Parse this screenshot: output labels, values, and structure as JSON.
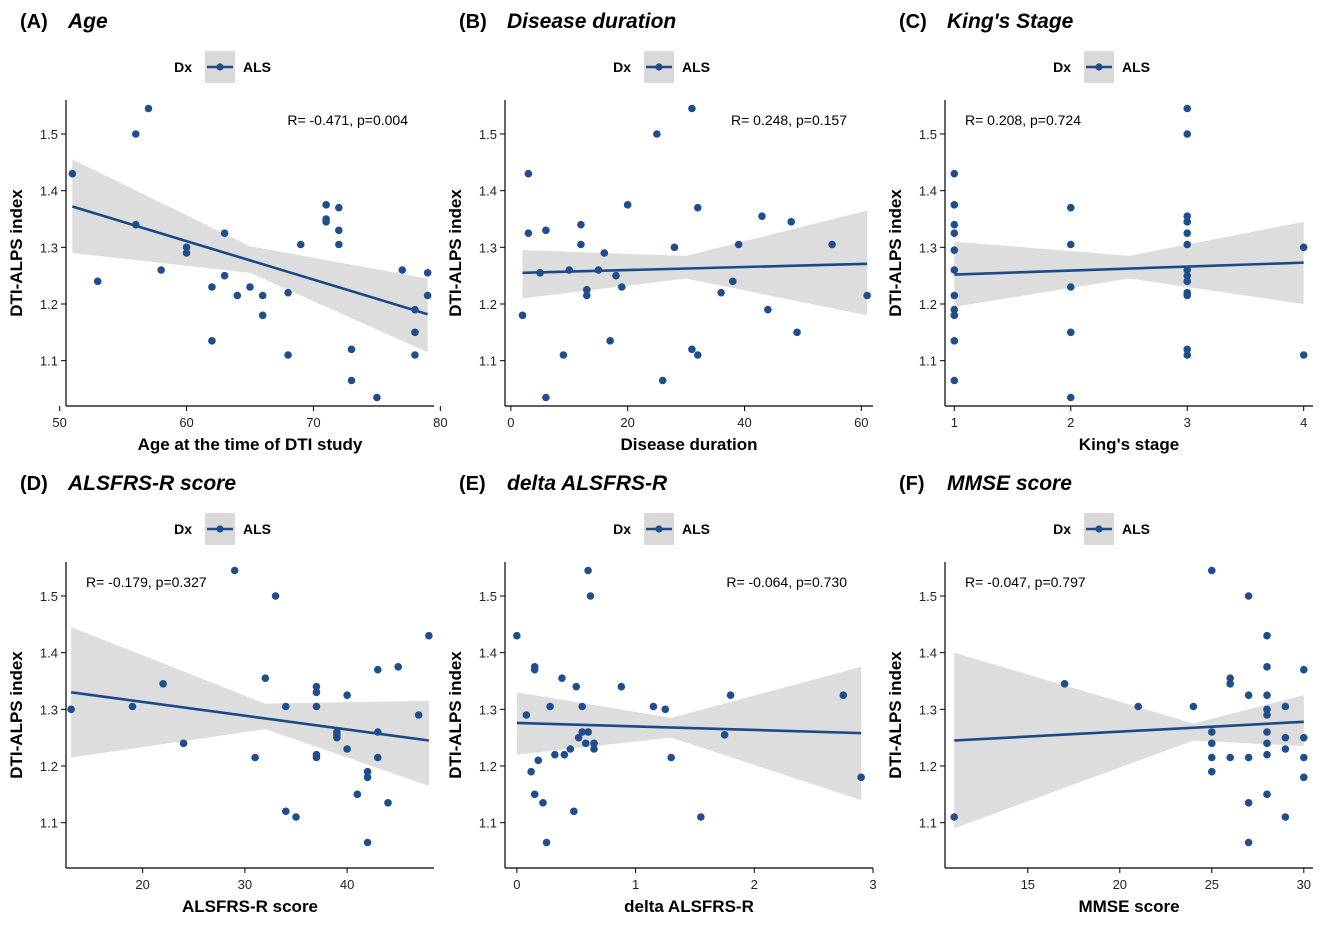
{
  "figure": {
    "colors": {
      "point": "#1f4e8c",
      "line": "#1b4a87",
      "band": "#d9d9d9",
      "axis": "#000000"
    },
    "legend_title": "Dx",
    "legend_label": "ALS"
  },
  "chart_data": [
    {
      "type": "scatter",
      "panel_letter": "(A)",
      "title": "Age",
      "xlabel": "Age at the time of DTI study",
      "ylabel": "DTI-ALPS index",
      "legend": [
        "ALS"
      ],
      "xlim": [
        50.5,
        79.5
      ],
      "ylim": [
        1.02,
        1.56
      ],
      "xticks": [
        50,
        60,
        70,
        80
      ],
      "xtick_labels": [
        "50",
        "60",
        "70",
        "80"
      ],
      "yticks": [
        1.1,
        1.2,
        1.3,
        1.4,
        1.5
      ],
      "ytick_labels": [
        "1.1",
        "1.2",
        "1.3",
        "1.4",
        "1.5"
      ],
      "annotation": "R= -0.471, p=0.004",
      "annotation_position": "top-right",
      "fit_line": [
        [
          51,
          1.372
        ],
        [
          79,
          1.182
        ]
      ],
      "ci_band": [
        [
          51,
          1.455,
          1.29
        ],
        [
          65,
          1.302,
          1.255
        ],
        [
          79,
          1.245,
          1.115
        ]
      ],
      "points": [
        [
          51,
          1.43
        ],
        [
          53,
          1.24
        ],
        [
          56,
          1.5
        ],
        [
          57,
          1.545
        ],
        [
          56,
          1.34
        ],
        [
          58,
          1.26
        ],
        [
          60,
          1.3
        ],
        [
          60,
          1.29
        ],
        [
          62,
          1.23
        ],
        [
          62,
          1.135
        ],
        [
          63,
          1.325
        ],
        [
          63,
          1.25
        ],
        [
          64,
          1.215
        ],
        [
          65,
          1.23
        ],
        [
          66,
          1.18
        ],
        [
          66,
          1.215
        ],
        [
          68,
          1.22
        ],
        [
          68,
          1.11
        ],
        [
          69,
          1.305
        ],
        [
          71,
          1.375
        ],
        [
          71,
          1.35
        ],
        [
          71,
          1.345
        ],
        [
          72,
          1.37
        ],
        [
          72,
          1.33
        ],
        [
          72,
          1.305
        ],
        [
          73,
          1.12
        ],
        [
          73,
          1.065
        ],
        [
          75,
          1.035
        ],
        [
          77,
          1.26
        ],
        [
          78,
          1.19
        ],
        [
          78,
          1.15
        ],
        [
          78,
          1.11
        ],
        [
          79,
          1.255
        ],
        [
          79,
          1.215
        ]
      ]
    },
    {
      "type": "scatter",
      "panel_letter": "(B)",
      "title": "Disease duration",
      "xlabel": "Disease duration",
      "ylabel": "DTI-ALPS index",
      "legend": [
        "ALS"
      ],
      "xlim": [
        -1,
        62
      ],
      "ylim": [
        1.02,
        1.56
      ],
      "xticks": [
        0,
        20,
        40,
        60
      ],
      "xtick_labels": [
        "0",
        "20",
        "40",
        "60"
      ],
      "yticks": [
        1.1,
        1.2,
        1.3,
        1.4,
        1.5
      ],
      "ytick_labels": [
        "1.1",
        "1.2",
        "1.3",
        "1.4",
        "1.5"
      ],
      "annotation": "R= 0.248, p=0.157",
      "annotation_position": "top-right",
      "fit_line": [
        [
          2,
          1.255
        ],
        [
          61,
          1.271
        ]
      ],
      "ci_band": [
        [
          2,
          1.295,
          1.21
        ],
        [
          30,
          1.285,
          1.245
        ],
        [
          61,
          1.365,
          1.18
        ]
      ],
      "points": [
        [
          2,
          1.18
        ],
        [
          3,
          1.43
        ],
        [
          3,
          1.325
        ],
        [
          5,
          1.255
        ],
        [
          6,
          1.035
        ],
        [
          6,
          1.33
        ],
        [
          9,
          1.11
        ],
        [
          10,
          1.26
        ],
        [
          12,
          1.305
        ],
        [
          12,
          1.34
        ],
        [
          13,
          1.225
        ],
        [
          13,
          1.215
        ],
        [
          15,
          1.26
        ],
        [
          16,
          1.29
        ],
        [
          17,
          1.135
        ],
        [
          18,
          1.25
        ],
        [
          19,
          1.23
        ],
        [
          20,
          1.375
        ],
        [
          25,
          1.5
        ],
        [
          26,
          1.065
        ],
        [
          28,
          1.3
        ],
        [
          31,
          1.545
        ],
        [
          31,
          1.12
        ],
        [
          32,
          1.11
        ],
        [
          32,
          1.37
        ],
        [
          36,
          1.22
        ],
        [
          38,
          1.24
        ],
        [
          39,
          1.305
        ],
        [
          43,
          1.355
        ],
        [
          44,
          1.19
        ],
        [
          48,
          1.345
        ],
        [
          49,
          1.15
        ],
        [
          55,
          1.305
        ],
        [
          61,
          1.215
        ]
      ]
    },
    {
      "type": "scatter",
      "panel_letter": "(C)",
      "title": "King's Stage",
      "xlabel": "King's stage",
      "ylabel": "DTI-ALPS index",
      "legend": [
        "ALS"
      ],
      "xlim": [
        0.92,
        4.08
      ],
      "ylim": [
        1.02,
        1.56
      ],
      "xticks": [
        1,
        2,
        3,
        4
      ],
      "xtick_labels": [
        "1",
        "2",
        "3",
        "4"
      ],
      "yticks": [
        1.1,
        1.2,
        1.3,
        1.4,
        1.5
      ],
      "ytick_labels": [
        "1.1",
        "1.2",
        "1.3",
        "1.4",
        "1.5"
      ],
      "annotation": "R= 0.208, p=0.724",
      "annotation_position": "top-left",
      "fit_line": [
        [
          1,
          1.252
        ],
        [
          4,
          1.273
        ]
      ],
      "ci_band": [
        [
          1,
          1.31,
          1.195
        ],
        [
          2.5,
          1.285,
          1.245
        ],
        [
          4,
          1.345,
          1.2
        ]
      ],
      "points": [
        [
          1,
          1.43
        ],
        [
          1,
          1.375
        ],
        [
          1,
          1.34
        ],
        [
          1,
          1.325
        ],
        [
          1,
          1.295
        ],
        [
          1,
          1.26
        ],
        [
          1,
          1.215
        ],
        [
          1,
          1.19
        ],
        [
          1,
          1.18
        ],
        [
          1,
          1.135
        ],
        [
          1,
          1.065
        ],
        [
          2,
          1.37
        ],
        [
          2,
          1.305
        ],
        [
          2,
          1.23
        ],
        [
          2,
          1.15
        ],
        [
          2,
          1.035
        ],
        [
          3,
          1.545
        ],
        [
          3,
          1.5
        ],
        [
          3,
          1.355
        ],
        [
          3,
          1.345
        ],
        [
          3,
          1.325
        ],
        [
          3,
          1.305
        ],
        [
          3,
          1.26
        ],
        [
          3,
          1.25
        ],
        [
          3,
          1.24
        ],
        [
          3,
          1.22
        ],
        [
          3,
          1.215
        ],
        [
          3,
          1.12
        ],
        [
          3,
          1.11
        ],
        [
          4,
          1.3
        ],
        [
          4,
          1.11
        ]
      ]
    },
    {
      "type": "scatter",
      "panel_letter": "(D)",
      "title": "ALSFRS-R score",
      "xlabel": "ALSFRS-R score",
      "ylabel": "DTI-ALPS index",
      "legend": [
        "ALS"
      ],
      "xlim": [
        12.5,
        48.5
      ],
      "ylim": [
        1.02,
        1.56
      ],
      "xticks": [
        20,
        30,
        40
      ],
      "xtick_labels": [
        "20",
        "30",
        "40"
      ],
      "yticks": [
        1.1,
        1.2,
        1.3,
        1.4,
        1.5
      ],
      "ytick_labels": [
        "1.1",
        "1.2",
        "1.3",
        "1.4",
        "1.5"
      ],
      "annotation": "R= -0.179, p=0.327",
      "annotation_position": "top-left",
      "fit_line": [
        [
          13,
          1.33
        ],
        [
          48,
          1.245
        ]
      ],
      "ci_band": [
        [
          13,
          1.445,
          1.215
        ],
        [
          32,
          1.31,
          1.265
        ],
        [
          48,
          1.315,
          1.165
        ]
      ],
      "points": [
        [
          13,
          1.3
        ],
        [
          19,
          1.305
        ],
        [
          22,
          1.345
        ],
        [
          24,
          1.24
        ],
        [
          29,
          1.545
        ],
        [
          31,
          1.215
        ],
        [
          32,
          1.355
        ],
        [
          33,
          1.5
        ],
        [
          34,
          1.305
        ],
        [
          34,
          1.12
        ],
        [
          35,
          1.11
        ],
        [
          37,
          1.34
        ],
        [
          37,
          1.33
        ],
        [
          37,
          1.305
        ],
        [
          37,
          1.22
        ],
        [
          37,
          1.215
        ],
        [
          39,
          1.26
        ],
        [
          39,
          1.255
        ],
        [
          39,
          1.25
        ],
        [
          40,
          1.325
        ],
        [
          40,
          1.23
        ],
        [
          41,
          1.15
        ],
        [
          42,
          1.19
        ],
        [
          42,
          1.18
        ],
        [
          42,
          1.065
        ],
        [
          43,
          1.37
        ],
        [
          43,
          1.26
        ],
        [
          43,
          1.215
        ],
        [
          44,
          1.135
        ],
        [
          45,
          1.375
        ],
        [
          47,
          1.29
        ],
        [
          48,
          1.43
        ]
      ]
    },
    {
      "type": "scatter",
      "panel_letter": "(E)",
      "title": "delta ALSFRS-R",
      "xlabel": "delta ALSFRS-R",
      "ylabel": "DTI-ALPS index",
      "legend": [
        "ALS"
      ],
      "xlim": [
        -0.1,
        3.0
      ],
      "ylim": [
        1.02,
        1.56
      ],
      "xticks": [
        0,
        1,
        2,
        3
      ],
      "xtick_labels": [
        "0",
        "1",
        "2",
        "3"
      ],
      "yticks": [
        1.1,
        1.2,
        1.3,
        1.4,
        1.5
      ],
      "ytick_labels": [
        "1.1",
        "1.2",
        "1.3",
        "1.4",
        "1.5"
      ],
      "annotation": "R= -0.064, p=0.730",
      "annotation_position": "top-right",
      "fit_line": [
        [
          0,
          1.276
        ],
        [
          2.9,
          1.258
        ]
      ],
      "ci_band": [
        [
          0,
          1.33,
          1.22
        ],
        [
          1.3,
          1.285,
          1.25
        ],
        [
          2.9,
          1.375,
          1.14
        ]
      ],
      "points": [
        [
          0.0,
          1.43
        ],
        [
          0.08,
          1.29
        ],
        [
          0.12,
          1.19
        ],
        [
          0.15,
          1.375
        ],
        [
          0.15,
          1.37
        ],
        [
          0.15,
          1.15
        ],
        [
          0.18,
          1.21
        ],
        [
          0.22,
          1.135
        ],
        [
          0.25,
          1.065
        ],
        [
          0.28,
          1.305
        ],
        [
          0.32,
          1.22
        ],
        [
          0.38,
          1.355
        ],
        [
          0.4,
          1.22
        ],
        [
          0.45,
          1.23
        ],
        [
          0.48,
          1.12
        ],
        [
          0.5,
          1.34
        ],
        [
          0.52,
          1.25
        ],
        [
          0.55,
          1.305
        ],
        [
          0.55,
          1.26
        ],
        [
          0.58,
          1.24
        ],
        [
          0.6,
          1.545
        ],
        [
          0.6,
          1.26
        ],
        [
          0.62,
          1.5
        ],
        [
          0.65,
          1.24
        ],
        [
          0.65,
          1.23
        ],
        [
          0.88,
          1.34
        ],
        [
          1.15,
          1.305
        ],
        [
          1.25,
          1.3
        ],
        [
          1.3,
          1.215
        ],
        [
          1.55,
          1.11
        ],
        [
          1.75,
          1.255
        ],
        [
          1.8,
          1.325
        ],
        [
          2.75,
          1.325
        ],
        [
          2.9,
          1.18
        ]
      ]
    },
    {
      "type": "scatter",
      "panel_letter": "(F)",
      "title": "MMSE score",
      "xlabel": "MMSE score",
      "ylabel": "DTI-ALPS index",
      "legend": [
        "ALS"
      ],
      "xlim": [
        10.5,
        30.5
      ],
      "ylim": [
        1.02,
        1.56
      ],
      "xticks": [
        15,
        20,
        25,
        30
      ],
      "xtick_labels": [
        "15",
        "20",
        "25",
        "30"
      ],
      "yticks": [
        1.1,
        1.2,
        1.3,
        1.4,
        1.5
      ],
      "ytick_labels": [
        "1.1",
        "1.2",
        "1.3",
        "1.4",
        "1.5"
      ],
      "annotation": "R= -0.047, p=0.797",
      "annotation_position": "top-left",
      "fit_line": [
        [
          11,
          1.245
        ],
        [
          30,
          1.278
        ]
      ],
      "ci_band": [
        [
          11,
          1.4,
          1.09
        ],
        [
          24,
          1.275,
          1.245
        ],
        [
          30,
          1.325,
          1.235
        ]
      ],
      "points": [
        [
          11,
          1.11
        ],
        [
          17,
          1.345
        ],
        [
          21,
          1.305
        ],
        [
          24,
          1.305
        ],
        [
          25,
          1.545
        ],
        [
          25,
          1.26
        ],
        [
          25,
          1.24
        ],
        [
          25,
          1.215
        ],
        [
          25,
          1.19
        ],
        [
          26,
          1.355
        ],
        [
          26,
          1.345
        ],
        [
          26,
          1.215
        ],
        [
          27,
          1.5
        ],
        [
          27,
          1.325
        ],
        [
          27,
          1.215
        ],
        [
          27,
          1.135
        ],
        [
          27,
          1.065
        ],
        [
          28,
          1.43
        ],
        [
          28,
          1.375
        ],
        [
          28,
          1.325
        ],
        [
          28,
          1.3
        ],
        [
          28,
          1.29
        ],
        [
          28,
          1.26
        ],
        [
          28,
          1.24
        ],
        [
          28,
          1.22
        ],
        [
          28,
          1.15
        ],
        [
          29,
          1.305
        ],
        [
          29,
          1.25
        ],
        [
          29,
          1.23
        ],
        [
          29,
          1.11
        ],
        [
          30,
          1.37
        ],
        [
          30,
          1.25
        ],
        [
          30,
          1.215
        ],
        [
          30,
          1.18
        ]
      ]
    }
  ]
}
